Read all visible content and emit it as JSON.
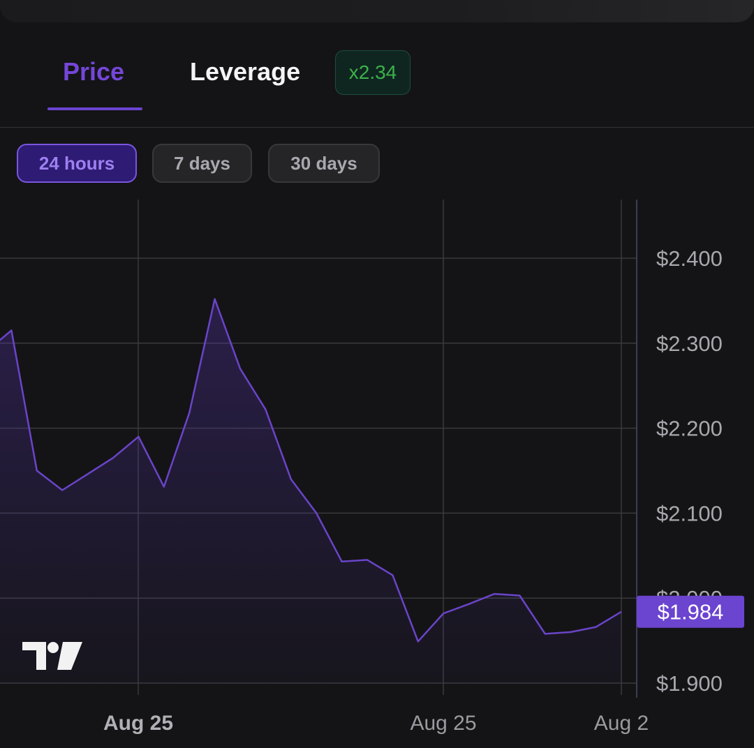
{
  "tabs": [
    {
      "label": "Price",
      "active": true
    },
    {
      "label": "Leverage",
      "active": false
    }
  ],
  "leverage_badge": "x2.34",
  "range_buttons": [
    {
      "label": "24 hours",
      "active": true
    },
    {
      "label": "7 days",
      "active": false
    },
    {
      "label": "30 days",
      "active": false
    }
  ],
  "colors": {
    "accent": "#6b44d0",
    "line": "#6a44c9",
    "badge_green": "#3cb14a",
    "background": "#141416",
    "grid": "#3a3a3e"
  },
  "icons": {
    "watermark": "tradingview-logo-icon"
  },
  "chart_data": {
    "type": "area",
    "x_ticks": [
      "Aug 25",
      "Aug 25",
      "Aug 2"
    ],
    "y_ticks": [
      "$2.400",
      "$2.300",
      "$2.200",
      "$2.100",
      "$2.000",
      "$1.900"
    ],
    "y_tick_values": [
      2.4,
      2.3,
      2.2,
      2.1,
      2.0,
      1.9
    ],
    "ylim": [
      1.9,
      2.4
    ],
    "current_price_label": "$1.984",
    "current_price": 1.984,
    "grid": true,
    "series": [
      {
        "values": [
          2.29,
          2.315,
          2.15,
          2.127,
          2.146,
          2.165,
          2.19,
          2.131,
          2.218,
          2.352,
          2.27,
          2.222,
          2.14,
          2.1,
          2.043,
          2.045,
          2.027,
          1.949,
          1.982,
          1.993,
          2.005,
          2.003,
          1.958,
          1.96,
          1.966,
          1.984
        ]
      }
    ]
  }
}
